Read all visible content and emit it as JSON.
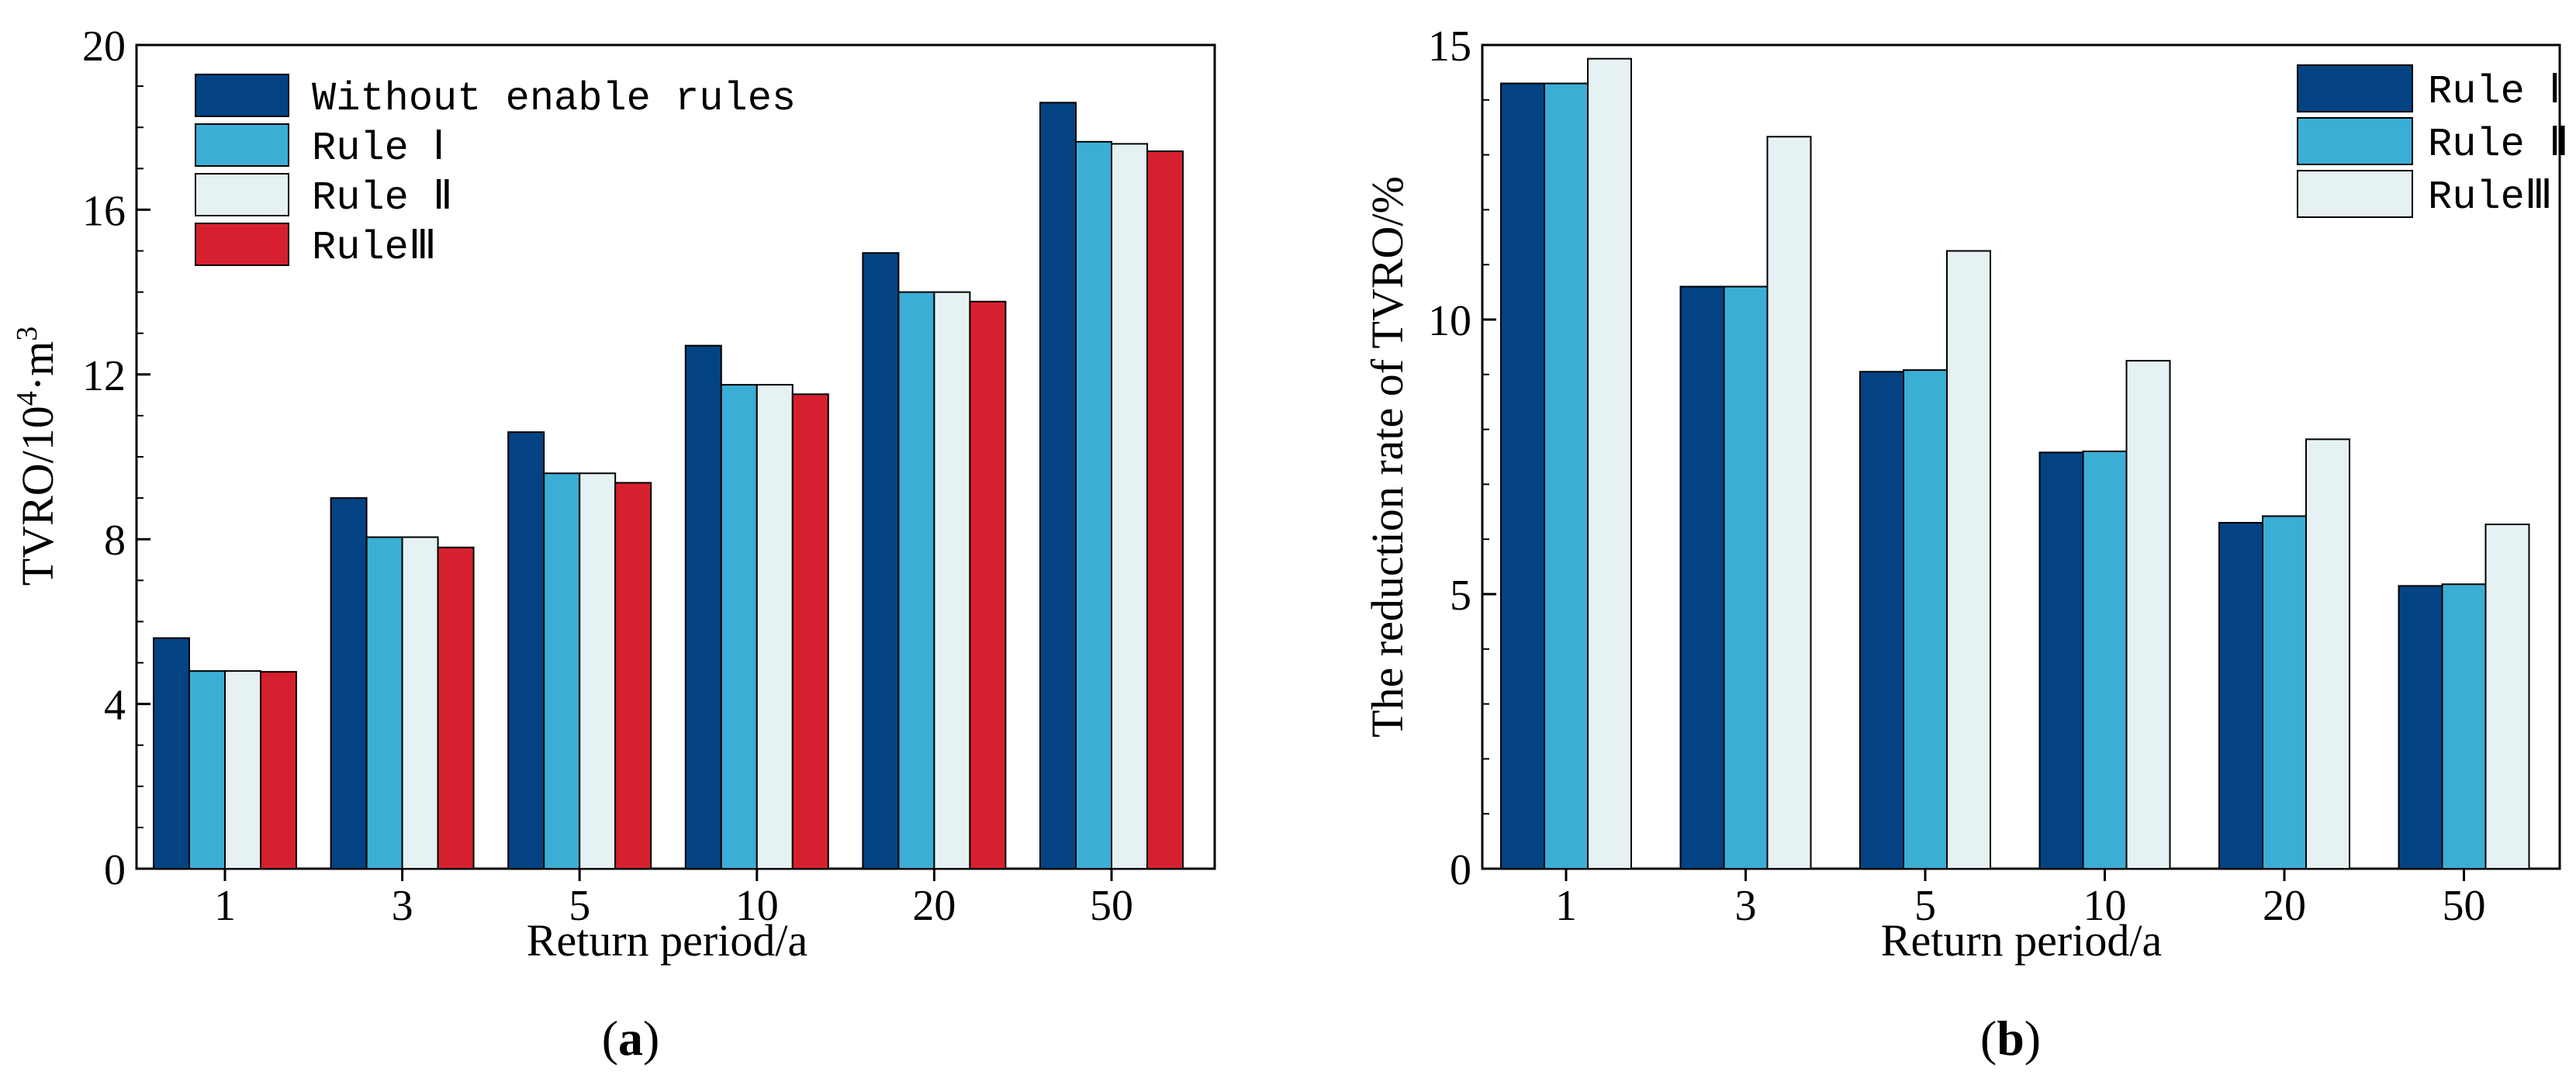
{
  "chart_data": [
    {
      "type": "bar",
      "panel_label": "a",
      "xlabel": "Return period/a",
      "ylabel": "TVRO/10",
      "ylabel_sup": "4",
      "ylabel_rest": "·m",
      "ylabel_sup2": "3",
      "categories": [
        "1",
        "3",
        "5",
        "10",
        "20",
        "50"
      ],
      "ylim": [
        0,
        20
      ],
      "yticks": [
        "0",
        "4",
        "8",
        "12",
        "16",
        "20"
      ],
      "legend_position": "top-left",
      "series": [
        {
          "name": "Without enable rules",
          "color": "#034384",
          "values": [
            5.6,
            9.0,
            10.6,
            12.7,
            14.95,
            18.6
          ]
        },
        {
          "name": "Rule I",
          "color": "#3BAED6",
          "values": [
            4.8,
            8.05,
            9.6,
            11.75,
            14.0,
            17.65
          ]
        },
        {
          "name": "Rule II",
          "color": "#E6F1F3",
          "values": [
            4.8,
            8.05,
            9.6,
            11.75,
            14.0,
            17.6
          ]
        },
        {
          "name": "Rule III",
          "color": "#D7202F",
          "values": [
            4.78,
            7.8,
            9.37,
            11.52,
            13.77,
            17.42
          ]
        }
      ]
    },
    {
      "type": "bar",
      "panel_label": "b",
      "xlabel": "Return period/a",
      "ylabel": "The reduction rate of TVRO/%",
      "categories": [
        "1",
        "3",
        "5",
        "10",
        "20",
        "50"
      ],
      "ylim": [
        0,
        15
      ],
      "yticks": [
        "0",
        "5",
        "10",
        "15"
      ],
      "legend_position": "top-right",
      "series": [
        {
          "name": "Rule I",
          "color": "#034384",
          "values": [
            14.3,
            10.6,
            9.05,
            7.58,
            6.3,
            5.15
          ]
        },
        {
          "name": "Rule II",
          "color": "#3BAED6",
          "values": [
            14.3,
            10.6,
            9.08,
            7.6,
            6.42,
            5.18
          ]
        },
        {
          "name": "Rule III",
          "color": "#E6F1F3",
          "values": [
            14.75,
            13.33,
            11.25,
            9.25,
            7.82,
            6.27
          ]
        }
      ]
    }
  ]
}
